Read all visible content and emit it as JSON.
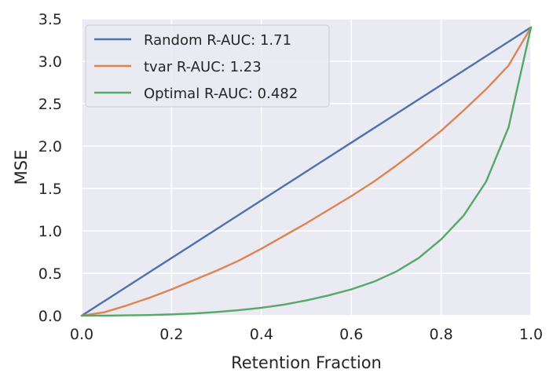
{
  "chart_data": {
    "type": "line",
    "title": "",
    "xlabel": "Retention Fraction",
    "ylabel": "MSE",
    "xlim": [
      0.0,
      1.0
    ],
    "ylim": [
      0.0,
      3.5
    ],
    "x_ticks": [
      "0.0",
      "0.2",
      "0.4",
      "0.6",
      "0.8",
      "1.0"
    ],
    "y_ticks": [
      "0.0",
      "0.5",
      "1.0",
      "1.5",
      "2.0",
      "2.5",
      "3.0",
      "3.5"
    ],
    "grid": true,
    "legend_position": "top-left",
    "background_color": "#eaeaf2",
    "x": [
      0.0,
      0.05,
      0.1,
      0.15,
      0.2,
      0.25,
      0.3,
      0.35,
      0.4,
      0.45,
      0.5,
      0.55,
      0.6,
      0.65,
      0.7,
      0.75,
      0.8,
      0.85,
      0.9,
      0.95,
      1.0
    ],
    "series": [
      {
        "name": "Random R-AUC: 1.71",
        "color": "#4c72b0",
        "values": [
          0.0,
          0.17,
          0.34,
          0.51,
          0.68,
          0.85,
          1.02,
          1.19,
          1.36,
          1.53,
          1.7,
          1.87,
          2.04,
          2.21,
          2.38,
          2.55,
          2.72,
          2.89,
          3.06,
          3.23,
          3.4
        ]
      },
      {
        "name": "tvar R-AUC: 1.23",
        "color": "#dd8452",
        "values": [
          0.0,
          0.04,
          0.12,
          0.21,
          0.31,
          0.42,
          0.53,
          0.65,
          0.79,
          0.94,
          1.09,
          1.25,
          1.41,
          1.58,
          1.77,
          1.97,
          2.18,
          2.42,
          2.67,
          2.95,
          3.4
        ]
      },
      {
        "name": "Optimal R-AUC: 0.482",
        "color": "#55a868",
        "values": [
          0.0,
          0.001,
          0.004,
          0.008,
          0.015,
          0.026,
          0.043,
          0.065,
          0.093,
          0.13,
          0.18,
          0.24,
          0.31,
          0.4,
          0.52,
          0.68,
          0.9,
          1.18,
          1.58,
          2.22,
          3.4
        ]
      }
    ]
  }
}
